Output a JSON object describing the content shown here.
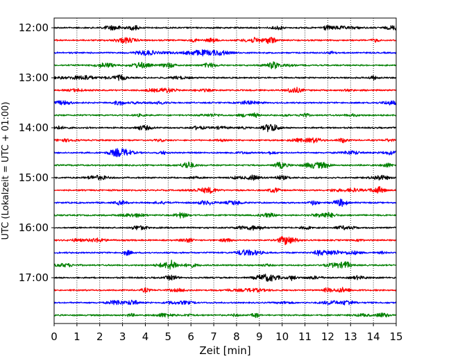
{
  "chart_data": {
    "type": "line",
    "title": "",
    "xlabel": "Zeit  [min]",
    "ylabel": "UTC (Lokalzeit = UTC + 01:00)",
    "xlim": [
      0,
      15
    ],
    "x_ticks": [
      "0",
      "1",
      "2",
      "3",
      "4",
      "5",
      "6",
      "7",
      "8",
      "9",
      "10",
      "11",
      "12",
      "13",
      "14",
      "15"
    ],
    "y_ticks": [
      "12:00",
      "13:00",
      "14:00",
      "15:00",
      "16:00",
      "17:00"
    ],
    "trace_interval_minutes": 15,
    "first_trace": "12:00",
    "trace_count": 24,
    "trace_colors": [
      "#000000",
      "#ff0000",
      "#0000ff",
      "#008000"
    ],
    "grid": "vertical dotted",
    "legend": "none"
  }
}
